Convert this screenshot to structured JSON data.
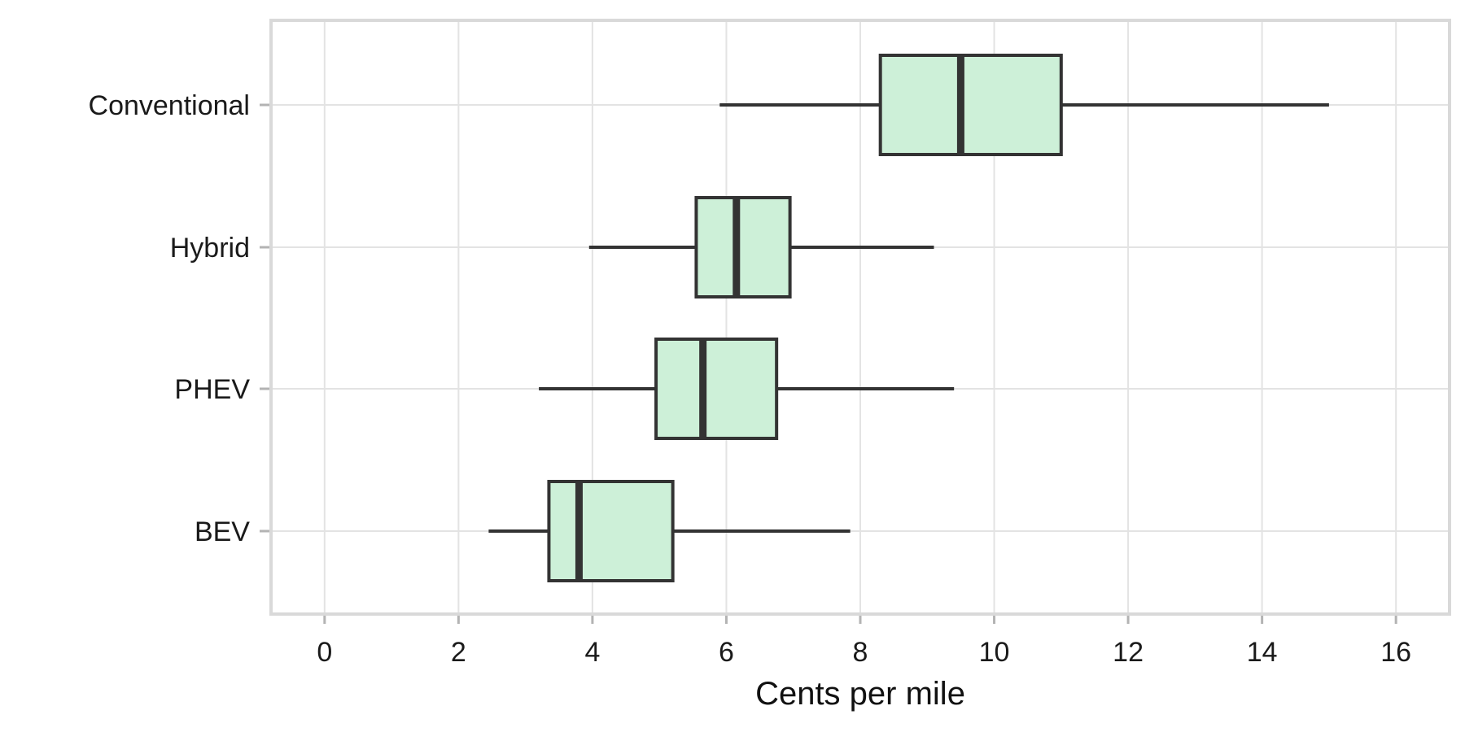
{
  "chart_data": {
    "type": "boxplot",
    "orientation": "horizontal",
    "title": "",
    "xlabel": "Cents per mile",
    "ylabel": "",
    "xlim": [
      -0.8,
      16.8
    ],
    "x_ticks": [
      0,
      2,
      4,
      6,
      8,
      10,
      12,
      14,
      16
    ],
    "x_tick_labels": [
      "0",
      "2",
      "4",
      "6",
      "8",
      "10",
      "12",
      "14",
      "16"
    ],
    "grid": true,
    "legend": "none",
    "categories": [
      "Conventional",
      "Hybrid",
      "PHEV",
      "BEV"
    ],
    "boxes": [
      {
        "category": "Conventional",
        "min": 5.9,
        "q1": 8.3,
        "median": 9.5,
        "q3": 11.0,
        "max": 15.0
      },
      {
        "category": "Hybrid",
        "min": 3.95,
        "q1": 5.55,
        "median": 6.15,
        "q3": 6.95,
        "max": 9.1
      },
      {
        "category": "PHEV",
        "min": 3.2,
        "q1": 4.95,
        "median": 5.65,
        "q3": 6.75,
        "max": 9.4
      },
      {
        "category": "BEV",
        "min": 2.45,
        "q1": 3.35,
        "median": 3.8,
        "q3": 5.2,
        "max": 7.85
      }
    ],
    "colors": {
      "box_fill": "#cdf0d8",
      "box_stroke": "#333333",
      "grid": "#e3e3e3",
      "panel_border": "#d9d9d9",
      "axis_tick": "#b3b3b3"
    }
  }
}
